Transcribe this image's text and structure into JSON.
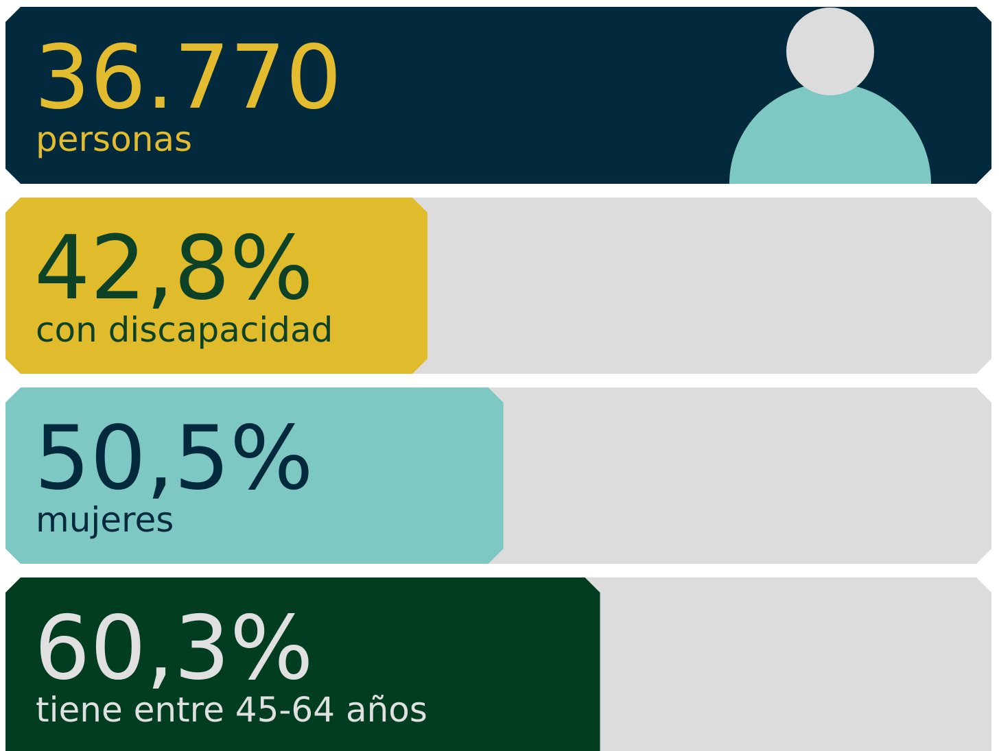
{
  "chart_data": {
    "type": "bar",
    "orientation": "horizontal",
    "headline": {
      "value_label": "36.770",
      "text": "personas",
      "color": "#022a3c",
      "text_color": "#e2bc2e"
    },
    "categories": [
      "con discapacidad",
      "mujeres",
      "tiene entre 45-64 años"
    ],
    "values": [
      42.8,
      50.5,
      60.3
    ],
    "value_labels": [
      "42,8%",
      "50,5%",
      "60,3%"
    ],
    "colors": [
      "#e0bb2c",
      "#7ec8c3",
      "#003d21"
    ],
    "label_colors": [
      "#0e4226",
      "#022a3c",
      "#e0e0e0"
    ],
    "track_color": "#dcdcdc",
    "xlim": [
      0,
      100
    ]
  }
}
